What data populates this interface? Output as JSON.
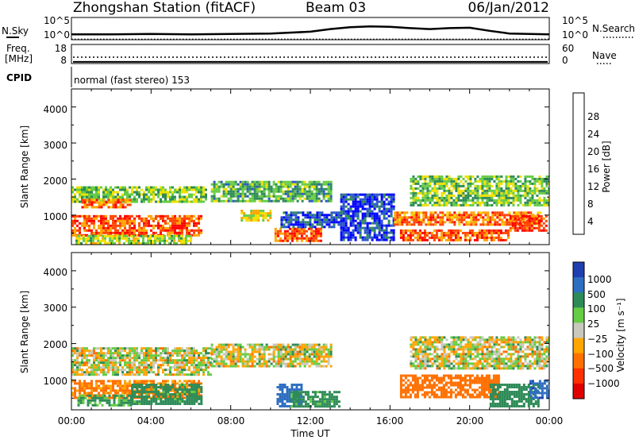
{
  "header": {
    "station": "Zhongshan Station (fitACF)",
    "beam": "Beam 03",
    "date": "06/Jan/2012"
  },
  "noise_panel": {
    "left_label": "N.Sky",
    "right_label": "N.Search",
    "ticks": [
      "10^5",
      "10^0"
    ],
    "series": [
      {
        "style": "solid",
        "points": [
          [
            0,
            1.2
          ],
          [
            2,
            1.2
          ],
          [
            4,
            1.3
          ],
          [
            6,
            1.2
          ],
          [
            8,
            1.3
          ],
          [
            10,
            1.4
          ],
          [
            12,
            1.8
          ],
          [
            13,
            2.4
          ],
          [
            14,
            2.8
          ],
          [
            15,
            3.0
          ],
          [
            16,
            2.9
          ],
          [
            17,
            2.6
          ],
          [
            18,
            2.4
          ],
          [
            19,
            2.6
          ],
          [
            20,
            2.7
          ],
          [
            21,
            2.0
          ],
          [
            22,
            1.4
          ],
          [
            24,
            1.2
          ]
        ]
      },
      {
        "style": "dotted",
        "points": [
          [
            0,
            0.1
          ],
          [
            24,
            0.1
          ]
        ]
      }
    ]
  },
  "freq_panel": {
    "left_label_1": "Freq.",
    "left_label_2": "[MHz]",
    "right_label": "Nave",
    "left_ticks": [
      "18",
      "8"
    ],
    "right_ticks": [
      "60",
      "0"
    ],
    "freq_mhz": 8.9,
    "nave": 20
  },
  "cpid": {
    "label": "CPID",
    "mode": "normal (fast stereo) 153"
  },
  "power_panel": {
    "ylabel": "Slant Range [km]",
    "yticks": [
      "4000",
      "3000",
      "2000",
      "1000"
    ],
    "colorbar": {
      "label": "Power [dB]",
      "ticks": [
        "28",
        "24",
        "20",
        "16",
        "12",
        "8",
        "4"
      ],
      "colors": [
        "#0000ff",
        "#2b57c8",
        "#2e8b57",
        "#66cc44",
        "#f0e000",
        "#ffa500",
        "#ff4500",
        "#ff0000"
      ]
    }
  },
  "velocity_panel": {
    "ylabel": "Slant Range [km]",
    "yticks": [
      "4000",
      "3000",
      "2000",
      "1000"
    ],
    "colorbar": {
      "label": "Velocity [m s⁻¹]",
      "ticks": [
        "1000",
        "500",
        "100",
        "25",
        "−25",
        "−100",
        "−500",
        "−1000"
      ],
      "colors": [
        "#1f3fb0",
        "#2e6ec0",
        "#2e8b57",
        "#66cc44",
        "#c8c8bc",
        "#ffa500",
        "#ff7000",
        "#ff3000",
        "#e00000"
      ]
    }
  },
  "xaxis": {
    "label": "Time UT",
    "ticks": [
      "00:00",
      "04:00",
      "08:00",
      "12:00",
      "16:00",
      "20:00",
      "00:00"
    ]
  },
  "chart_data": {
    "type": "heatmap",
    "x_range_hours": [
      0,
      24
    ],
    "y_range_km": [
      180,
      4500
    ],
    "power_regions": [
      {
        "t0": 0.0,
        "t1": 6.8,
        "r0": 1350,
        "r1": 1800,
        "db": 14
      },
      {
        "t0": 0.0,
        "t1": 6.5,
        "r0": 450,
        "r1": 1000,
        "db": 26
      },
      {
        "t0": 0.5,
        "t1": 3.0,
        "r0": 1250,
        "r1": 1450,
        "db": 24
      },
      {
        "t0": 0.2,
        "t1": 6.0,
        "r0": 250,
        "r1": 450,
        "db": 16
      },
      {
        "t0": 7.0,
        "t1": 13.0,
        "r0": 1400,
        "r1": 1950,
        "db": 12
      },
      {
        "t0": 8.5,
        "t1": 10.0,
        "r0": 850,
        "r1": 1150,
        "db": 18
      },
      {
        "t0": 10.2,
        "t1": 12.5,
        "r0": 280,
        "r1": 650,
        "db": 27
      },
      {
        "t0": 10.5,
        "t1": 13.5,
        "r0": 700,
        "r1": 1100,
        "db": 6
      },
      {
        "t0": 13.5,
        "t1": 16.2,
        "r0": 300,
        "r1": 1600,
        "db": 5
      },
      {
        "t0": 16.2,
        "t1": 23.5,
        "r0": 750,
        "r1": 1100,
        "db": 24
      },
      {
        "t0": 16.5,
        "t1": 22.0,
        "r0": 300,
        "r1": 600,
        "db": 26
      },
      {
        "t0": 17.0,
        "t1": 24.0,
        "r0": 1300,
        "r1": 2100,
        "db": 14
      },
      {
        "t0": 22.0,
        "t1": 23.8,
        "r0": 600,
        "r1": 1000,
        "db": 27
      }
    ],
    "velocity_regions": [
      {
        "t0": 0.0,
        "t1": 7.0,
        "r0": 1150,
        "r1": 1900,
        "v": 0
      },
      {
        "t0": 0.0,
        "t1": 6.5,
        "r0": 500,
        "r1": 1000,
        "v": -150
      },
      {
        "t0": 0.3,
        "t1": 3.0,
        "r0": 300,
        "r1": 600,
        "v": 150
      },
      {
        "t0": 3.0,
        "t1": 6.5,
        "r0": 350,
        "r1": 900,
        "v": 200
      },
      {
        "t0": 7.0,
        "t1": 13.0,
        "r0": 1400,
        "r1": 2000,
        "v": 0
      },
      {
        "t0": 10.3,
        "t1": 11.5,
        "r0": 250,
        "r1": 900,
        "v": 800
      },
      {
        "t0": 11.0,
        "t1": 13.5,
        "r0": 300,
        "r1": 700,
        "v": 200
      },
      {
        "t0": 16.5,
        "t1": 21.5,
        "r0": 550,
        "r1": 1150,
        "v": -300
      },
      {
        "t0": 17.0,
        "t1": 24.0,
        "r0": 1300,
        "r1": 2200,
        "v": 0
      },
      {
        "t0": 21.0,
        "t1": 23.5,
        "r0": 300,
        "r1": 900,
        "v": 300
      },
      {
        "t0": 23.0,
        "t1": 24.0,
        "r0": 500,
        "r1": 1000,
        "v": 900
      }
    ]
  }
}
